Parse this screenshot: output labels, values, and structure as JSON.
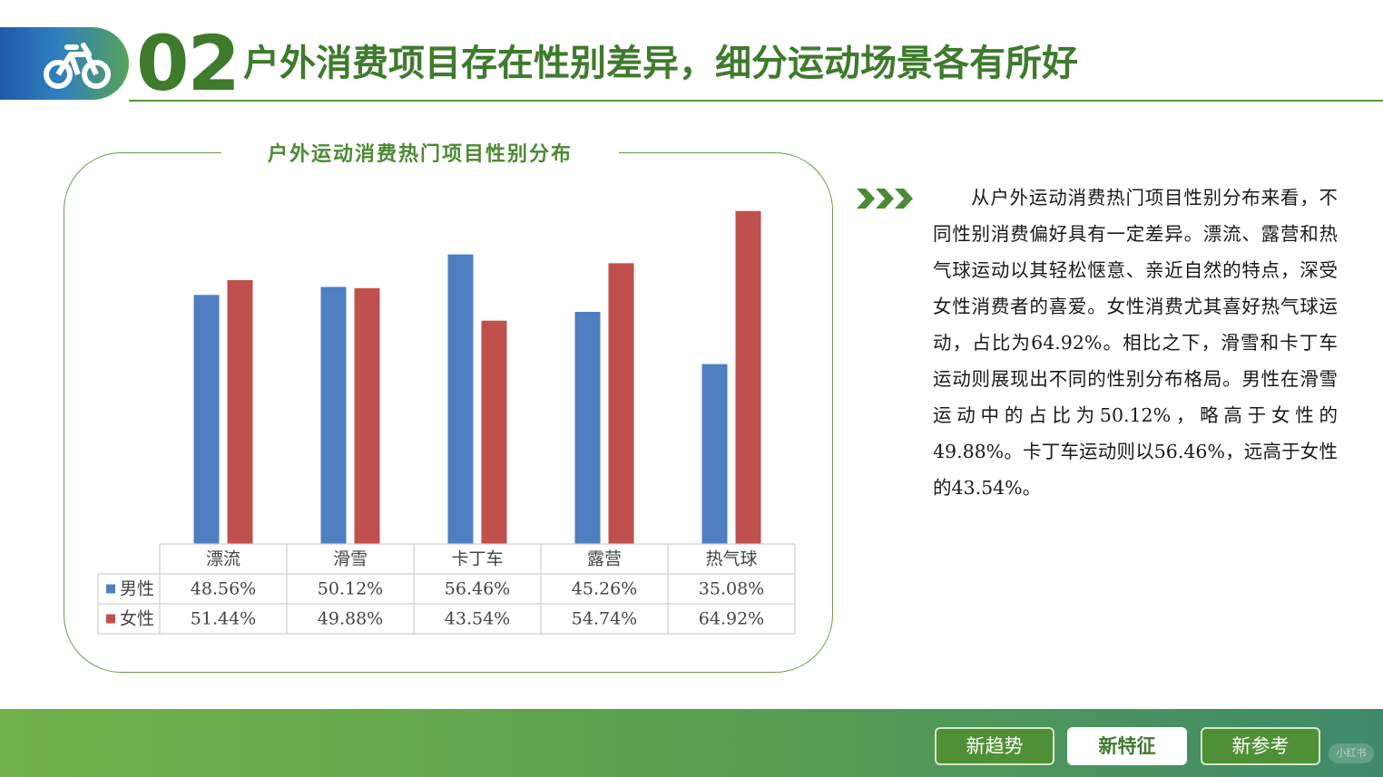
{
  "header": {
    "number": "02",
    "title": "户外消费项目存在性别差异，细分运动场景各有所好",
    "icon": "bicycle-icon"
  },
  "chart_data": {
    "type": "bar",
    "title": "户外运动消费热门项目性别分布",
    "categories": [
      "漂流",
      "滑雪",
      "卡丁车",
      "露营",
      "热气球"
    ],
    "series": [
      {
        "name": "男性",
        "color": "#4f7fc0",
        "values": [
          48.56,
          50.12,
          56.46,
          45.26,
          35.08
        ],
        "labels": [
          "48.56%",
          "50.12%",
          "56.46%",
          "45.26%",
          "35.08%"
        ]
      },
      {
        "name": "女性",
        "color": "#c0504d",
        "values": [
          51.44,
          49.88,
          43.54,
          54.74,
          64.92
        ],
        "labels": [
          "51.44%",
          "49.88%",
          "43.54%",
          "54.74%",
          "64.92%"
        ]
      }
    ],
    "ylim": [
      0,
      70
    ],
    "grid": false,
    "legend": "data-table"
  },
  "description": "从户外运动消费热门项目性别分布来看，不同性别消费偏好具有一定差异。漂流、露营和热气球运动以其轻松惬意、亲近自然的特点，深受女性消费者的喜爱。女性消费尤其喜好热气球运动，占比为64.92%。相比之下，滑雪和卡丁车运动则展现出不同的性别分布格局。男性在滑雪运动中的占比为50.12%，略高于女性的49.88%。卡丁车运动则以56.46%，远高于女性的43.54%。",
  "footer": {
    "buttons": [
      {
        "label": "新趋势",
        "active": false
      },
      {
        "label": "新特征",
        "active": true
      },
      {
        "label": "新参考",
        "active": false
      }
    ],
    "watermark": "小红书"
  }
}
